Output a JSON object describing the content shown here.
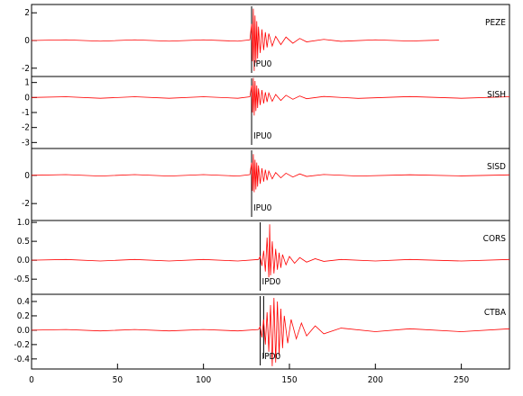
{
  "chart_data": [
    {
      "type": "line",
      "xlim": [
        0,
        278
      ],
      "ylim": [
        -2.6,
        2.6
      ],
      "yticks": [
        -2,
        0,
        2
      ],
      "series": [
        {
          "name": "PEZE",
          "color": "#ff0000",
          "x": [
            0,
            20,
            40,
            60,
            80,
            100,
            120,
            127,
            128,
            128.5,
            129,
            129.5,
            130,
            130.5,
            131,
            131.5,
            132,
            133,
            134,
            135,
            136,
            137,
            138,
            140,
            142,
            145,
            148,
            152,
            156,
            160,
            170,
            180,
            200,
            220,
            237
          ],
          "values": [
            0,
            0.05,
            -0.05,
            0.05,
            -0.05,
            0.05,
            -0.05,
            0.05,
            1.2,
            -1.5,
            2.3,
            -2.2,
            1.8,
            -1.6,
            1.4,
            -1.3,
            1.0,
            -0.9,
            0.8,
            -0.7,
            0.6,
            -0.5,
            0.5,
            -0.4,
            0.3,
            -0.3,
            0.25,
            -0.2,
            0.15,
            -0.1,
            0.08,
            -0.06,
            0.05,
            -0.04,
            0.03
          ]
        }
      ],
      "annotations": [
        {
          "text": "IPU0",
          "x": 128
        }
      ]
    },
    {
      "type": "line",
      "xlim": [
        0,
        278
      ],
      "ylim": [
        -3.4,
        1.4
      ],
      "yticks": [
        -3,
        -2,
        -1,
        0,
        1
      ],
      "series": [
        {
          "name": "SISH",
          "color": "#ff0000",
          "x": [
            0,
            20,
            40,
            60,
            80,
            100,
            120,
            127,
            128,
            128.5,
            129,
            129.5,
            130,
            130.5,
            131,
            131.5,
            132,
            133,
            134,
            135,
            136,
            137,
            138,
            140,
            142,
            145,
            148,
            152,
            156,
            160,
            170,
            190,
            220,
            250,
            278
          ],
          "values": [
            0,
            0.05,
            -0.05,
            0.05,
            -0.05,
            0.05,
            -0.05,
            0.05,
            0.8,
            -1.0,
            1.3,
            -1.2,
            1.1,
            -0.9,
            0.8,
            -0.7,
            0.6,
            -0.5,
            0.5,
            -0.4,
            0.35,
            -0.3,
            0.3,
            -0.25,
            0.2,
            -0.2,
            0.15,
            -0.12,
            0.1,
            -0.08,
            0.07,
            -0.06,
            0.06,
            -0.05,
            0.05
          ]
        }
      ],
      "annotations": [
        {
          "text": "IPU0",
          "x": 128
        }
      ]
    },
    {
      "type": "line",
      "xlim": [
        0,
        278
      ],
      "ylim": [
        -3.2,
        1.9
      ],
      "yticks": [
        -2,
        0
      ],
      "series": [
        {
          "name": "SISD",
          "color": "#ff0000",
          "x": [
            0,
            20,
            40,
            60,
            80,
            100,
            120,
            127,
            128,
            128.5,
            129,
            129.5,
            130,
            130.5,
            131,
            131.5,
            132,
            133,
            134,
            135,
            136,
            137,
            138,
            140,
            142,
            145,
            148,
            152,
            156,
            160,
            170,
            190,
            220,
            250,
            278
          ],
          "values": [
            0,
            0.05,
            -0.05,
            0.05,
            -0.05,
            0.05,
            -0.05,
            0.05,
            0.9,
            -1.1,
            1.5,
            -1.2,
            1.1,
            -1.0,
            0.9,
            -0.8,
            0.7,
            -0.6,
            0.5,
            -0.45,
            0.4,
            -0.35,
            0.3,
            -0.25,
            0.2,
            -0.18,
            0.15,
            -0.12,
            0.1,
            -0.08,
            0.06,
            -0.05,
            0.04,
            -0.04,
            0.03
          ]
        }
      ],
      "annotations": [
        {
          "text": "IPU0",
          "x": 128
        }
      ]
    },
    {
      "type": "line",
      "xlim": [
        0,
        278
      ],
      "ylim": [
        -0.9,
        1.05
      ],
      "yticks": [
        {
          "value": 1,
          "label": "1.0"
        },
        0.5,
        {
          "value": 0,
          "label": "0.0"
        },
        -0.5
      ],
      "series": [
        {
          "name": "CORS",
          "color": "#ff0000",
          "x": [
            0,
            20,
            40,
            60,
            80,
            100,
            120,
            132,
            133,
            134,
            135,
            136,
            137,
            138,
            138.5,
            139,
            140,
            141,
            142,
            143,
            144,
            145,
            146,
            148,
            150,
            153,
            156,
            160,
            165,
            170,
            180,
            200,
            220,
            250,
            278
          ],
          "values": [
            0,
            0.02,
            -0.02,
            0.02,
            -0.02,
            0.02,
            -0.02,
            0.02,
            0.1,
            -0.15,
            0.25,
            -0.3,
            0.6,
            -0.45,
            0.95,
            -0.4,
            0.5,
            -0.35,
            0.3,
            -0.25,
            0.2,
            -0.2,
            0.15,
            -0.12,
            0.1,
            -0.08,
            0.07,
            -0.05,
            0.04,
            -0.03,
            0.02,
            -0.02,
            0.02,
            -0.02,
            0.02
          ]
        }
      ],
      "annotations": [
        {
          "text": "IPD0",
          "x": 133
        }
      ]
    },
    {
      "type": "line",
      "xlim": [
        0,
        278
      ],
      "ylim": [
        -0.54,
        0.5
      ],
      "yticks": [
        0.4,
        0.2,
        {
          "value": 0,
          "label": "0.0"
        },
        -0.2,
        -0.4
      ],
      "xticks": [
        0,
        50,
        100,
        150,
        200,
        250
      ],
      "series": [
        {
          "name": "CTBA",
          "color": "#ff0000",
          "x": [
            0,
            20,
            40,
            60,
            80,
            100,
            120,
            132,
            133,
            134,
            135,
            136,
            137,
            138,
            139,
            140,
            141,
            142,
            143,
            144,
            145,
            146,
            147,
            149,
            151,
            154,
            157,
            160,
            165,
            170,
            180,
            200,
            220,
            250,
            278
          ],
          "values": [
            0,
            0.01,
            -0.01,
            0.01,
            -0.01,
            0.01,
            -0.01,
            0.01,
            0.05,
            -0.1,
            0.15,
            -0.2,
            0.25,
            -0.3,
            0.35,
            -0.5,
            0.45,
            -0.45,
            0.4,
            -0.35,
            0.3,
            -0.25,
            0.2,
            -0.18,
            0.15,
            -0.12,
            0.1,
            -0.08,
            0.06,
            -0.05,
            0.03,
            -0.02,
            0.02,
            -0.02,
            0.02
          ]
        }
      ],
      "annotations": [
        {
          "text": "IPD0",
          "x": 133
        }
      ],
      "vlines": [
        135
      ]
    }
  ]
}
